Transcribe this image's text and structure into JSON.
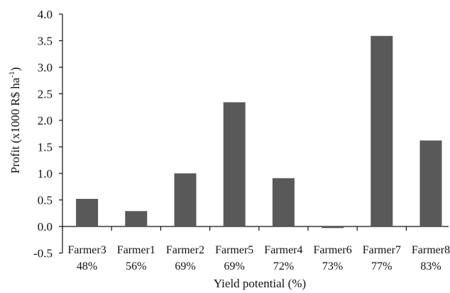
{
  "chart_data": {
    "type": "bar",
    "categories": [
      {
        "name": "Farmer3",
        "pct": "48%"
      },
      {
        "name": "Farmer1",
        "pct": "56%"
      },
      {
        "name": "Farmer2",
        "pct": "69%"
      },
      {
        "name": "Farmer5",
        "pct": "69%"
      },
      {
        "name": "Farmer4",
        "pct": "72%"
      },
      {
        "name": "Farmer6",
        "pct": "73%"
      },
      {
        "name": "Farmer7",
        "pct": "77%"
      },
      {
        "name": "Farmer8",
        "pct": "83%"
      }
    ],
    "values": [
      0.52,
      0.29,
      1.0,
      2.34,
      0.91,
      -0.03,
      3.59,
      1.62
    ],
    "xlabel": "Yield potential (%)",
    "ylabel": {
      "main": "Profit (x1000 R$ ha",
      "superscript": "-1",
      "close": ")"
    },
    "yticks": [
      "-0.5",
      "0.0",
      "0.5",
      "1.0",
      "1.5",
      "2.0",
      "2.5",
      "3.0",
      "3.5",
      "4.0"
    ],
    "ylim": [
      -0.5,
      4.0
    ],
    "bar_color": "#595959",
    "grid": false
  }
}
